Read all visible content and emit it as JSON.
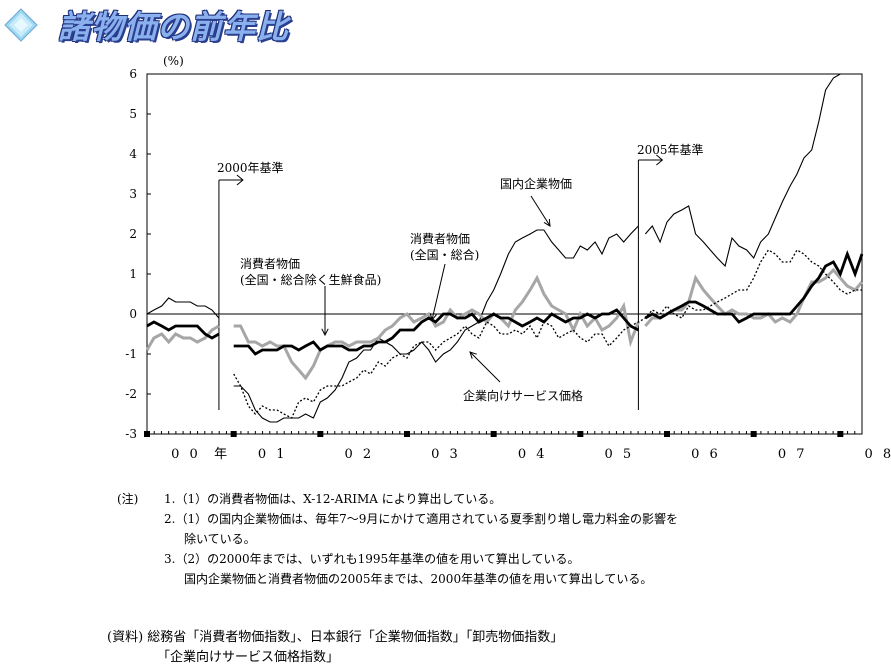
{
  "header": {
    "title": "諸物価の前年比",
    "icon": "diamond-icon"
  },
  "chart_data": {
    "type": "line",
    "ylabel": "(%)",
    "ylim": [
      -3,
      6
    ],
    "yticks": [
      "6",
      "5",
      "4",
      "3",
      "2",
      "1",
      "0",
      "-1",
      "-2",
      "-3"
    ],
    "xlabel_prefix": "年",
    "xticks": [
      "0 0",
      "0 1",
      "0 2",
      "0 3",
      "0 4",
      "0 5",
      "0 6",
      "0 7",
      "0 8"
    ],
    "xrange": [
      2000.0,
      2008.25
    ],
    "grid": false,
    "annotations": [
      {
        "text": "2000年基準",
        "x": 2000.75,
        "y": 3.6
      },
      {
        "text": "2005年基準",
        "x": 2005.75,
        "y": 4.1
      },
      {
        "text": "国内企業物価",
        "x": 2004.1,
        "y": 3.2
      },
      {
        "text": "消費者物価\n(全国・総合)",
        "x": 2003.2,
        "y": 1.8
      },
      {
        "text": "消費者物価\n(全国・総合除く生鮮食品)",
        "x": 2001.0,
        "y": 1.2
      },
      {
        "text": "企業向けサービス価格",
        "x": 2004.05,
        "y": -2.0
      }
    ],
    "colors": {
      "cpi_total": "#000000",
      "cpi_core": "#a6a6a6",
      "cgpi": "#000000",
      "cspi": "#000000"
    },
    "series": [
      {
        "key": "cgpi",
        "style": "thin-solid",
        "segments": [
          {
            "x": [
              2000.0,
              2000.08,
              2000.17,
              2000.25,
              2000.33,
              2000.42,
              2000.5,
              2000.58,
              2000.67,
              2000.75,
              2000.83
            ],
            "y": [
              0.0,
              0.1,
              0.2,
              0.4,
              0.3,
              0.3,
              0.3,
              0.2,
              0.2,
              0.1,
              -0.1
            ]
          },
          {
            "x": [
              2001.0,
              2001.08,
              2001.17,
              2001.25,
              2001.33,
              2001.42,
              2001.5,
              2001.58,
              2001.67,
              2001.75,
              2001.83,
              2001.92,
              2002.0,
              2002.08,
              2002.17,
              2002.25,
              2002.33,
              2002.42,
              2002.5,
              2002.58,
              2002.67,
              2002.75,
              2002.83,
              2002.92,
              2003.0,
              2003.08,
              2003.17,
              2003.25,
              2003.33,
              2003.42,
              2003.5,
              2003.58,
              2003.67,
              2003.75,
              2003.83,
              2003.92,
              2004.0,
              2004.08,
              2004.17,
              2004.25,
              2004.33,
              2004.42,
              2004.5,
              2004.58,
              2004.67,
              2004.75,
              2004.83,
              2004.92,
              2005.0,
              2005.08,
              2005.17,
              2005.25,
              2005.33,
              2005.42,
              2005.5,
              2005.58,
              2005.67
            ],
            "y": [
              -1.8,
              -1.8,
              -2.0,
              -2.4,
              -2.6,
              -2.7,
              -2.7,
              -2.6,
              -2.6,
              -2.6,
              -2.5,
              -2.6,
              -2.2,
              -2.1,
              -1.9,
              -1.6,
              -1.2,
              -1.1,
              -0.9,
              -0.9,
              -0.6,
              -0.7,
              -0.8,
              -1.0,
              -1.0,
              -0.9,
              -0.7,
              -0.9,
              -1.2,
              -1.0,
              -0.9,
              -0.7,
              -0.4,
              -0.3,
              -0.2,
              0.3,
              0.6,
              1.0,
              1.5,
              1.8,
              1.9,
              2.0,
              2.1,
              2.1,
              1.8,
              1.6,
              1.4,
              1.4,
              1.7,
              1.6,
              1.8,
              1.5,
              1.9,
              2.0,
              1.8,
              2.0,
              2.2
            ]
          },
          {
            "x": [
              2005.75,
              2005.83,
              2005.92,
              2006.0,
              2006.08,
              2006.17,
              2006.25,
              2006.33,
              2006.42,
              2006.5,
              2006.58,
              2006.67,
              2006.75,
              2006.83,
              2006.92,
              2007.0,
              2007.08,
              2007.17,
              2007.25,
              2007.33,
              2007.42,
              2007.5,
              2007.58,
              2007.67,
              2007.75,
              2007.83,
              2007.92,
              2008.0,
              2008.08,
              2008.17,
              2008.25
            ],
            "y": [
              2.0,
              2.2,
              1.8,
              2.3,
              2.5,
              2.6,
              2.7,
              2.0,
              1.8,
              1.6,
              1.4,
              1.2,
              1.9,
              1.7,
              1.6,
              1.4,
              1.8,
              2.0,
              2.4,
              2.8,
              3.2,
              3.5,
              3.9,
              4.1,
              4.8,
              5.6,
              5.9,
              6.0,
              6.0,
              6.0,
              6.0
            ]
          }
        ]
      },
      {
        "key": "cpi_core",
        "style": "thick-gray",
        "segments": [
          {
            "x": [
              2000.0,
              2000.08,
              2000.17,
              2000.25,
              2000.33,
              2000.42,
              2000.5,
              2000.58,
              2000.67,
              2000.75,
              2000.83
            ],
            "y": [
              -0.9,
              -0.6,
              -0.5,
              -0.7,
              -0.5,
              -0.6,
              -0.6,
              -0.7,
              -0.6,
              -0.4,
              -0.3
            ]
          },
          {
            "x": [
              2001.0,
              2001.08,
              2001.17,
              2001.25,
              2001.33,
              2001.42,
              2001.5,
              2001.58,
              2001.67,
              2001.75,
              2001.83,
              2001.92,
              2002.0,
              2002.08,
              2002.17,
              2002.25,
              2002.33,
              2002.42,
              2002.5,
              2002.58,
              2002.67,
              2002.75,
              2002.83,
              2002.92,
              2003.0,
              2003.08,
              2003.17,
              2003.25,
              2003.33,
              2003.42,
              2003.5,
              2003.58,
              2003.67,
              2003.75,
              2003.83,
              2003.92,
              2004.0,
              2004.08,
              2004.17,
              2004.25,
              2004.33,
              2004.42,
              2004.5,
              2004.58,
              2004.67,
              2004.75,
              2004.83,
              2004.92,
              2005.0,
              2005.08,
              2005.17,
              2005.25,
              2005.33,
              2005.42,
              2005.5,
              2005.58,
              2005.67
            ],
            "y": [
              -0.3,
              -0.3,
              -0.7,
              -0.7,
              -0.8,
              -0.7,
              -0.8,
              -0.8,
              -1.2,
              -1.4,
              -1.6,
              -1.3,
              -0.9,
              -0.8,
              -0.7,
              -0.7,
              -0.8,
              -0.7,
              -0.7,
              -0.7,
              -0.6,
              -0.4,
              -0.3,
              -0.1,
              0.0,
              -0.2,
              -0.1,
              0.0,
              -0.3,
              -0.2,
              0.1,
              -0.1,
              0.0,
              0.1,
              0.0,
              -0.2,
              0.0,
              -0.1,
              -0.3,
              0.1,
              0.3,
              0.6,
              0.9,
              0.5,
              0.2,
              0.1,
              0.0,
              -0.4,
              0.0,
              -0.3,
              -0.1,
              -0.4,
              -0.3,
              -0.1,
              0.2,
              -0.7,
              -0.2
            ]
          },
          {
            "x": [
              2005.75,
              2005.83,
              2005.92,
              2006.0,
              2006.08,
              2006.17,
              2006.25,
              2006.33,
              2006.42,
              2006.5,
              2006.58,
              2006.67,
              2006.75,
              2006.83,
              2006.92,
              2007.0,
              2007.08,
              2007.17,
              2007.25,
              2007.33,
              2007.42,
              2007.5,
              2007.58,
              2007.67,
              2007.75,
              2007.83,
              2007.92,
              2008.0,
              2008.08,
              2008.17,
              2008.25
            ],
            "y": [
              -0.3,
              -0.1,
              -0.1,
              0.0,
              0.1,
              0.1,
              0.3,
              0.9,
              0.6,
              0.4,
              0.2,
              0.0,
              0.1,
              0.0,
              0.0,
              -0.1,
              -0.1,
              0.0,
              -0.2,
              -0.1,
              -0.2,
              0.0,
              0.4,
              0.8,
              0.8,
              0.9,
              1.1,
              0.9,
              0.7,
              0.6,
              0.8
            ]
          }
        ]
      },
      {
        "key": "cspi",
        "style": "dotted",
        "segments": [
          {
            "x": [
              2001.0,
              2001.08,
              2001.17,
              2001.25,
              2001.33,
              2001.42,
              2001.5,
              2001.58,
              2001.67,
              2001.75,
              2001.83,
              2001.92,
              2002.0,
              2002.08,
              2002.17,
              2002.25,
              2002.33,
              2002.42,
              2002.5,
              2002.58,
              2002.67,
              2002.75,
              2002.83,
              2002.92,
              2003.0,
              2003.08,
              2003.17,
              2003.25,
              2003.33,
              2003.42,
              2003.5,
              2003.58,
              2003.67,
              2003.75,
              2003.83,
              2003.92,
              2004.0,
              2004.08,
              2004.17,
              2004.25,
              2004.33,
              2004.42,
              2004.5,
              2004.58,
              2004.67,
              2004.75,
              2004.83,
              2004.92,
              2005.0,
              2005.08,
              2005.17,
              2005.25,
              2005.33,
              2005.42,
              2005.5,
              2005.58,
              2005.67,
              2005.75,
              2005.83,
              2005.92,
              2006.0,
              2006.08,
              2006.17,
              2006.25,
              2006.33,
              2006.42,
              2006.5,
              2006.58,
              2006.67,
              2006.75,
              2006.83,
              2006.92,
              2007.0,
              2007.08,
              2007.17,
              2007.25,
              2007.33,
              2007.42,
              2007.5,
              2007.58,
              2007.67,
              2007.75,
              2007.83,
              2007.92,
              2008.0,
              2008.08,
              2008.17,
              2008.25
            ],
            "y": [
              -1.5,
              -1.8,
              -2.3,
              -2.5,
              -2.3,
              -2.4,
              -2.4,
              -2.5,
              -2.6,
              -2.2,
              -2.1,
              -2.2,
              -1.9,
              -1.8,
              -1.8,
              -1.8,
              -1.7,
              -1.6,
              -1.4,
              -1.5,
              -1.2,
              -1.3,
              -1.1,
              -1.0,
              -1.1,
              -0.8,
              -0.7,
              -0.7,
              -0.9,
              -0.7,
              -0.6,
              -0.5,
              -0.3,
              -0.5,
              -0.6,
              -0.2,
              -0.3,
              -0.5,
              -0.5,
              -0.4,
              -0.5,
              -0.3,
              -0.6,
              -0.2,
              -0.3,
              -0.6,
              -0.5,
              -0.4,
              -0.6,
              -0.7,
              -0.5,
              -0.5,
              -0.8,
              -0.6,
              -0.4,
              -0.3,
              -0.2,
              -0.1,
              0.1,
              0.0,
              0.2,
              0.0,
              -0.1,
              0.2,
              0.1,
              0.1,
              0.2,
              0.3,
              0.4,
              0.5,
              0.6,
              0.6,
              0.9,
              1.3,
              1.6,
              1.5,
              1.3,
              1.3,
              1.6,
              1.5,
              1.3,
              1.2,
              1.0,
              0.8,
              0.6,
              0.5,
              0.6,
              0.6
            ]
          }
        ]
      },
      {
        "key": "cpi_total",
        "style": "thick-black",
        "segments": [
          {
            "x": [
              2000.0,
              2000.08,
              2000.17,
              2000.25,
              2000.33,
              2000.42,
              2000.5,
              2000.58,
              2000.67,
              2000.75,
              2000.83
            ],
            "y": [
              -0.3,
              -0.2,
              -0.3,
              -0.4,
              -0.3,
              -0.3,
              -0.3,
              -0.3,
              -0.5,
              -0.6,
              -0.5
            ]
          },
          {
            "x": [
              2001.0,
              2001.08,
              2001.17,
              2001.25,
              2001.33,
              2001.42,
              2001.5,
              2001.58,
              2001.67,
              2001.75,
              2001.83,
              2001.92,
              2002.0,
              2002.08,
              2002.17,
              2002.25,
              2002.33,
              2002.42,
              2002.5,
              2002.58,
              2002.67,
              2002.75,
              2002.83,
              2002.92,
              2003.0,
              2003.08,
              2003.17,
              2003.25,
              2003.33,
              2003.42,
              2003.5,
              2003.58,
              2003.67,
              2003.75,
              2003.83,
              2003.92,
              2004.0,
              2004.08,
              2004.17,
              2004.25,
              2004.33,
              2004.42,
              2004.5,
              2004.58,
              2004.67,
              2004.75,
              2004.83,
              2004.92,
              2005.0,
              2005.08,
              2005.17,
              2005.25,
              2005.33,
              2005.42,
              2005.5,
              2005.58,
              2005.67
            ],
            "y": [
              -0.8,
              -0.8,
              -0.8,
              -1.0,
              -0.9,
              -0.9,
              -0.9,
              -0.8,
              -0.8,
              -0.9,
              -0.8,
              -0.7,
              -0.9,
              -0.8,
              -0.8,
              -0.8,
              -0.9,
              -0.9,
              -0.8,
              -0.8,
              -0.7,
              -0.7,
              -0.6,
              -0.4,
              -0.4,
              -0.4,
              -0.2,
              -0.1,
              -0.2,
              0.0,
              0.0,
              -0.1,
              -0.1,
              0.0,
              -0.2,
              -0.1,
              0.0,
              -0.1,
              -0.1,
              -0.2,
              -0.3,
              -0.2,
              -0.1,
              -0.2,
              0.0,
              -0.1,
              -0.2,
              -0.1,
              -0.1,
              0.0,
              -0.1,
              0.0,
              0.0,
              0.1,
              -0.1,
              -0.3,
              -0.4
            ]
          },
          {
            "x": [
              2005.75,
              2005.83,
              2005.92,
              2006.0,
              2006.08,
              2006.17,
              2006.25,
              2006.33,
              2006.42,
              2006.5,
              2006.58,
              2006.67,
              2006.75,
              2006.83,
              2006.92,
              2007.0,
              2007.08,
              2007.17,
              2007.25,
              2007.33,
              2007.42,
              2007.5,
              2007.58,
              2007.67,
              2007.75,
              2007.83,
              2007.92,
              2008.0,
              2008.08,
              2008.17,
              2008.25
            ],
            "y": [
              -0.1,
              0.0,
              -0.1,
              0.0,
              0.1,
              0.2,
              0.3,
              0.3,
              0.2,
              0.1,
              0.0,
              0.0,
              0.0,
              -0.2,
              -0.1,
              0.0,
              0.0,
              0.0,
              0.0,
              0.0,
              0.0,
              0.2,
              0.4,
              0.7,
              0.9,
              1.2,
              1.3,
              1.0,
              1.5,
              1.0,
              1.5
            ]
          }
        ]
      }
    ]
  },
  "notes": {
    "title": "(注)",
    "items": [
      "1.（1）の消費者物価は、X-12-ARIMA により算出している。",
      "2.（1）の国内企業物価は、毎年7～9月にかけて適用されている夏季割り増し電力料金の影響を",
      "除いている。",
      "3.（2）の2000年までは、いずれも1995年基準の値を用いて算出している。",
      "国内企業物価と消費者物価の2005年までは、2000年基準の値を用いて算出している。"
    ]
  },
  "source": {
    "line1": "(資料) 総務省「消費者物価指数」、日本銀行「企業物価指数」「卸売物価指数」",
    "line2": "「企業向けサービス価格指数」"
  }
}
